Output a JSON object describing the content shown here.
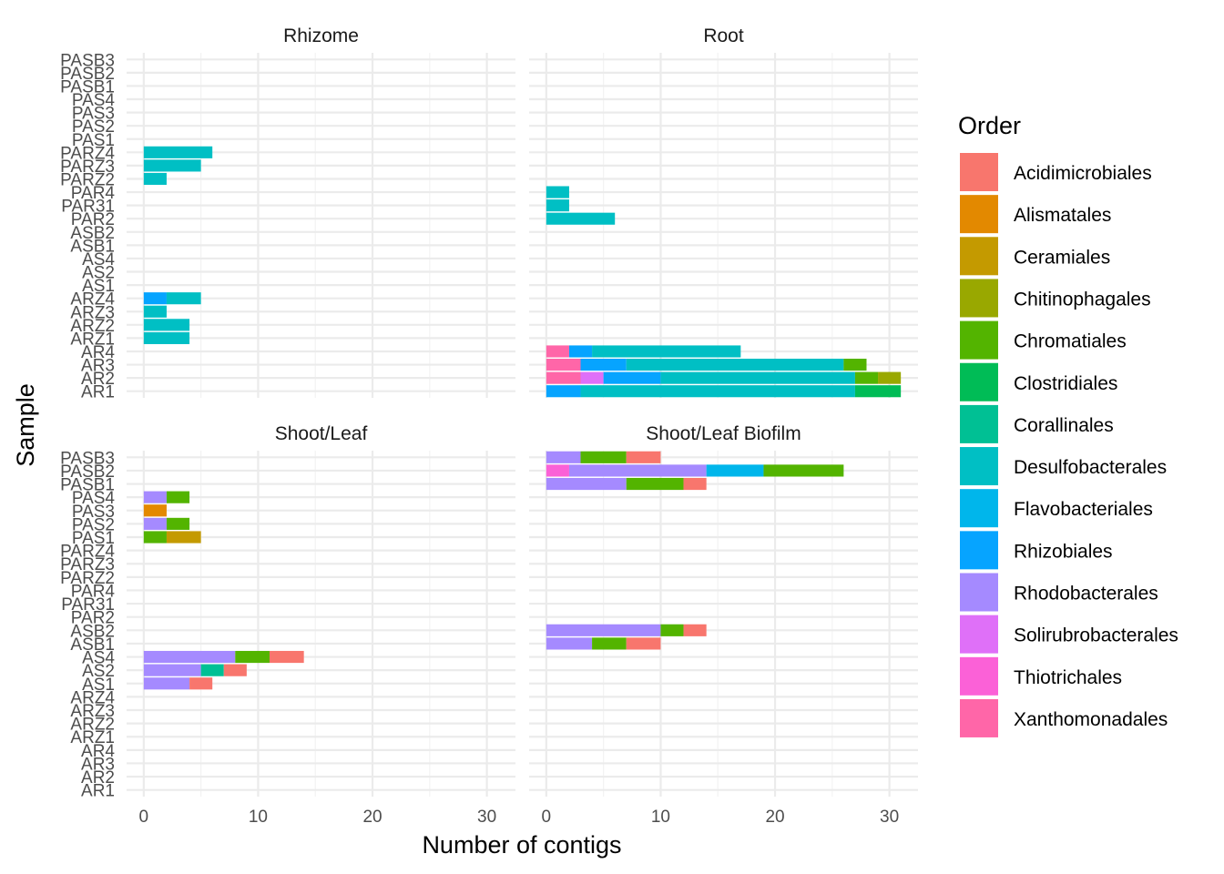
{
  "chart_data": {
    "type": "bar",
    "orientation": "horizontal",
    "stacked": true,
    "xlabel": "Number of contigs",
    "ylabel": "Sample",
    "xlim": [
      -1.5,
      32.5
    ],
    "x_ticks": [
      0,
      10,
      20,
      30
    ],
    "grid": true,
    "legend_title": "Order",
    "legend_position": "right",
    "categories": [
      "PASB3",
      "PASB2",
      "PASB1",
      "PAS4",
      "PAS3",
      "PAS2",
      "PAS1",
      "PARZ4",
      "PARZ3",
      "PARZ2",
      "PAR4",
      "PAR31",
      "PAR2",
      "ASB2",
      "ASB1",
      "AS4",
      "AS2",
      "AS1",
      "ARZ4",
      "ARZ3",
      "ARZ2",
      "ARZ1",
      "AR4",
      "AR3",
      "AR2",
      "AR1"
    ],
    "orders": [
      {
        "name": "Acidimicrobiales",
        "color": "#F8766D"
      },
      {
        "name": "Alismatales",
        "color": "#E38900"
      },
      {
        "name": "Ceramiales",
        "color": "#C49A00"
      },
      {
        "name": "Chitinophagales",
        "color": "#99A800"
      },
      {
        "name": "Chromatiales",
        "color": "#53B400"
      },
      {
        "name": "Clostridiales",
        "color": "#00BC56"
      },
      {
        "name": "Corallinales",
        "color": "#00C094"
      },
      {
        "name": "Desulfobacterales",
        "color": "#00BFC4"
      },
      {
        "name": "Flavobacteriales",
        "color": "#00B6EB"
      },
      {
        "name": "Rhizobiales",
        "color": "#06A4FF"
      },
      {
        "name": "Rhodobacterales",
        "color": "#A58AFF"
      },
      {
        "name": "Solirubrobacterales",
        "color": "#DF70F8"
      },
      {
        "name": "Thiotrichales",
        "color": "#FB61D7"
      },
      {
        "name": "Xanthomonadales",
        "color": "#FF66A8"
      }
    ],
    "panels": [
      {
        "title": "Rhizome",
        "bars": [
          {
            "sample": "PARZ4",
            "segments": [
              {
                "order": "Desulfobacterales",
                "value": 6
              }
            ]
          },
          {
            "sample": "PARZ3",
            "segments": [
              {
                "order": "Desulfobacterales",
                "value": 5
              }
            ]
          },
          {
            "sample": "PARZ2",
            "segments": [
              {
                "order": "Desulfobacterales",
                "value": 2
              }
            ]
          },
          {
            "sample": "ARZ4",
            "segments": [
              {
                "order": "Rhizobiales",
                "value": 2
              },
              {
                "order": "Desulfobacterales",
                "value": 3
              }
            ]
          },
          {
            "sample": "ARZ3",
            "segments": [
              {
                "order": "Desulfobacterales",
                "value": 2
              }
            ]
          },
          {
            "sample": "ARZ2",
            "segments": [
              {
                "order": "Desulfobacterales",
                "value": 4
              }
            ]
          },
          {
            "sample": "ARZ1",
            "segments": [
              {
                "order": "Desulfobacterales",
                "value": 4
              }
            ]
          }
        ]
      },
      {
        "title": "Root",
        "bars": [
          {
            "sample": "PAR4",
            "segments": [
              {
                "order": "Desulfobacterales",
                "value": 2
              }
            ]
          },
          {
            "sample": "PAR31",
            "segments": [
              {
                "order": "Desulfobacterales",
                "value": 2
              }
            ]
          },
          {
            "sample": "PAR2",
            "segments": [
              {
                "order": "Desulfobacterales",
                "value": 6
              }
            ]
          },
          {
            "sample": "AR4",
            "segments": [
              {
                "order": "Xanthomonadales",
                "value": 2
              },
              {
                "order": "Rhizobiales",
                "value": 2
              },
              {
                "order": "Desulfobacterales",
                "value": 13
              }
            ]
          },
          {
            "sample": "AR3",
            "segments": [
              {
                "order": "Xanthomonadales",
                "value": 3
              },
              {
                "order": "Rhizobiales",
                "value": 4
              },
              {
                "order": "Desulfobacterales",
                "value": 19
              },
              {
                "order": "Chromatiales",
                "value": 2
              }
            ]
          },
          {
            "sample": "AR2",
            "segments": [
              {
                "order": "Xanthomonadales",
                "value": 3
              },
              {
                "order": "Solirubrobacterales",
                "value": 2
              },
              {
                "order": "Rhizobiales",
                "value": 5
              },
              {
                "order": "Desulfobacterales",
                "value": 17
              },
              {
                "order": "Chromatiales",
                "value": 2
              },
              {
                "order": "Chitinophagales",
                "value": 2
              }
            ]
          },
          {
            "sample": "AR1",
            "segments": [
              {
                "order": "Rhizobiales",
                "value": 3
              },
              {
                "order": "Desulfobacterales",
                "value": 24
              },
              {
                "order": "Clostridiales",
                "value": 4
              }
            ]
          }
        ]
      },
      {
        "title": "Shoot/Leaf",
        "bars": [
          {
            "sample": "PAS4",
            "segments": [
              {
                "order": "Rhodobacterales",
                "value": 2
              },
              {
                "order": "Chromatiales",
                "value": 2
              }
            ]
          },
          {
            "sample": "PAS3",
            "segments": [
              {
                "order": "Alismatales",
                "value": 2
              }
            ]
          },
          {
            "sample": "PAS2",
            "segments": [
              {
                "order": "Rhodobacterales",
                "value": 2
              },
              {
                "order": "Chromatiales",
                "value": 2
              }
            ]
          },
          {
            "sample": "PAS1",
            "segments": [
              {
                "order": "Chromatiales",
                "value": 2
              },
              {
                "order": "Ceramiales",
                "value": 3
              }
            ]
          },
          {
            "sample": "AS4",
            "segments": [
              {
                "order": "Rhodobacterales",
                "value": 8
              },
              {
                "order": "Chromatiales",
                "value": 3
              },
              {
                "order": "Acidimicrobiales",
                "value": 3
              }
            ]
          },
          {
            "sample": "AS2",
            "segments": [
              {
                "order": "Rhodobacterales",
                "value": 5
              },
              {
                "order": "Corallinales",
                "value": 2
              },
              {
                "order": "Acidimicrobiales",
                "value": 2
              }
            ]
          },
          {
            "sample": "AS1",
            "segments": [
              {
                "order": "Rhodobacterales",
                "value": 4
              },
              {
                "order": "Acidimicrobiales",
                "value": 2
              }
            ]
          }
        ]
      },
      {
        "title": "Shoot/Leaf Biofilm",
        "bars": [
          {
            "sample": "PASB3",
            "segments": [
              {
                "order": "Rhodobacterales",
                "value": 3
              },
              {
                "order": "Chromatiales",
                "value": 4
              },
              {
                "order": "Acidimicrobiales",
                "value": 3
              }
            ]
          },
          {
            "sample": "PASB2",
            "segments": [
              {
                "order": "Thiotrichales",
                "value": 2
              },
              {
                "order": "Rhodobacterales",
                "value": 12
              },
              {
                "order": "Flavobacteriales",
                "value": 5
              },
              {
                "order": "Chromatiales",
                "value": 7
              }
            ]
          },
          {
            "sample": "PASB1",
            "segments": [
              {
                "order": "Rhodobacterales",
                "value": 7
              },
              {
                "order": "Chromatiales",
                "value": 5
              },
              {
                "order": "Acidimicrobiales",
                "value": 2
              }
            ]
          },
          {
            "sample": "ASB2",
            "segments": [
              {
                "order": "Rhodobacterales",
                "value": 10
              },
              {
                "order": "Chromatiales",
                "value": 2
              },
              {
                "order": "Acidimicrobiales",
                "value": 2
              }
            ]
          },
          {
            "sample": "ASB1",
            "segments": [
              {
                "order": "Rhodobacterales",
                "value": 4
              },
              {
                "order": "Chromatiales",
                "value": 3
              },
              {
                "order": "Acidimicrobiales",
                "value": 3
              }
            ]
          }
        ]
      }
    ]
  }
}
